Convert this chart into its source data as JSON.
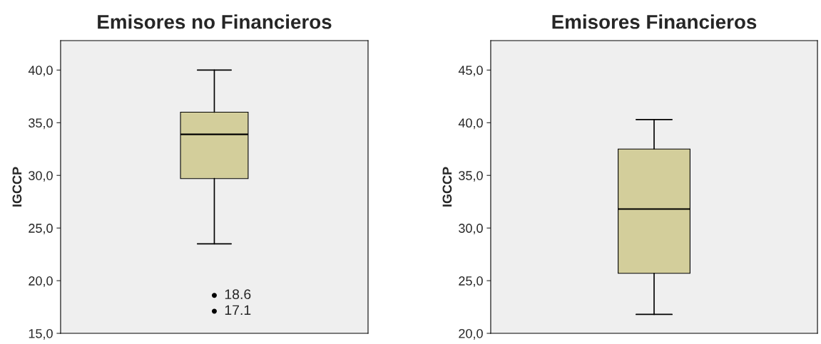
{
  "chart_data": [
    {
      "type": "box",
      "title": "Emisores no Financieros",
      "ylabel": "IGCCP",
      "categories": [
        null
      ],
      "series": [
        {
          "color": "#d3ce9b",
          "boxes": [
            {
              "low": 23.5,
              "q1": 29.7,
              "median": 33.9,
              "q3": 36.0,
              "high": 40.0,
              "outliers": [
                18.6,
                17.1
              ]
            }
          ]
        }
      ],
      "ylim": [
        15,
        42.8
      ],
      "yticks": [
        {
          "value": 15,
          "label": "15,0"
        },
        {
          "value": 20,
          "label": "20,0"
        },
        {
          "value": 25,
          "label": "25,0"
        },
        {
          "value": 30,
          "label": "30,0"
        },
        {
          "value": 35,
          "label": "35,0"
        },
        {
          "value": 40,
          "label": "40,0"
        }
      ],
      "annotations": [
        "18.6",
        "17.1"
      ],
      "grid": false,
      "legend": false
    },
    {
      "type": "box",
      "title": "Emisores Financieros",
      "ylabel": "IGCCP",
      "categories": [
        null
      ],
      "series": [
        {
          "color": "#d3ce9b",
          "boxes": [
            {
              "low": 21.8,
              "q1": 25.7,
              "median": 31.8,
              "q3": 37.5,
              "high": 40.3
            }
          ]
        }
      ],
      "ylim": [
        20,
        47.8
      ],
      "yticks": [
        {
          "value": 20,
          "label": "20,0"
        },
        {
          "value": 25,
          "label": "25,0"
        },
        {
          "value": 30,
          "label": "30,0"
        },
        {
          "value": 35,
          "label": "35,0"
        },
        {
          "value": 40,
          "label": "40,0"
        },
        {
          "value": 45,
          "label": "45,0"
        }
      ],
      "grid": false,
      "legend": false
    }
  ]
}
